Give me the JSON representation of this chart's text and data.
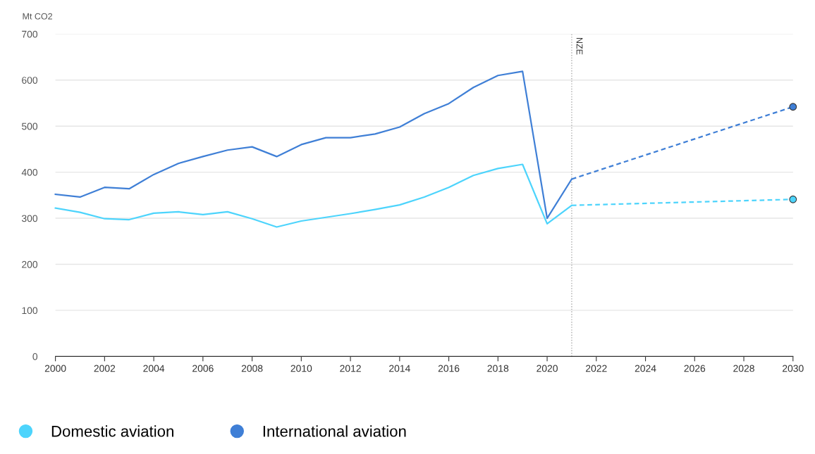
{
  "chart_data": {
    "type": "line",
    "ylabel": "Mt CO2",
    "x": [
      2000,
      2001,
      2002,
      2003,
      2004,
      2005,
      2006,
      2007,
      2008,
      2009,
      2010,
      2011,
      2012,
      2013,
      2014,
      2015,
      2016,
      2017,
      2018,
      2019,
      2020,
      2021,
      2030
    ],
    "series": [
      {
        "name": "Domestic aviation",
        "color": "#4dd4fc",
        "values": [
          322,
          313,
          299,
          297,
          311,
          314,
          308,
          314,
          299,
          281,
          294,
          302,
          310,
          319,
          329,
          346,
          367,
          393,
          408,
          417,
          288,
          328,
          null
        ]
      },
      {
        "name": "International aviation",
        "color": "#3f7fd6",
        "values": [
          352,
          346,
          367,
          364,
          395,
          419,
          434,
          448,
          455,
          434,
          460,
          475,
          475,
          483,
          498,
          527,
          549,
          584,
          610,
          619,
          300,
          385,
          null
        ]
      },
      {
        "color": "#4dd4fc",
        "values": [
          null,
          null,
          null,
          null,
          null,
          null,
          null,
          null,
          null,
          null,
          null,
          null,
          null,
          null,
          null,
          null,
          null,
          null,
          null,
          null,
          null,
          328,
          341
        ],
        "line_style": "dashed",
        "marker": "circle"
      },
      {
        "color": "#3f7fd6",
        "values": [
          null,
          null,
          null,
          null,
          null,
          null,
          null,
          null,
          null,
          null,
          null,
          null,
          null,
          null,
          null,
          null,
          null,
          null,
          null,
          null,
          null,
          385,
          542
        ],
        "line_style": "dashed",
        "marker": "circle"
      }
    ],
    "xlim": [
      2000,
      2030
    ],
    "xticks": [
      2000,
      2002,
      2004,
      2006,
      2008,
      2010,
      2012,
      2014,
      2016,
      2018,
      2020,
      2022,
      2024,
      2026,
      2028,
      2030
    ],
    "ylim": [
      0,
      700
    ],
    "yticks": [
      0,
      100,
      200,
      300,
      400,
      500,
      600,
      700
    ],
    "ref_lines": [
      {
        "axis": "x",
        "value": 2021,
        "label": "NZE",
        "color": "#aaaaaa",
        "line_style": "dotted"
      }
    ],
    "grid": "y",
    "legend": "bottom left"
  }
}
